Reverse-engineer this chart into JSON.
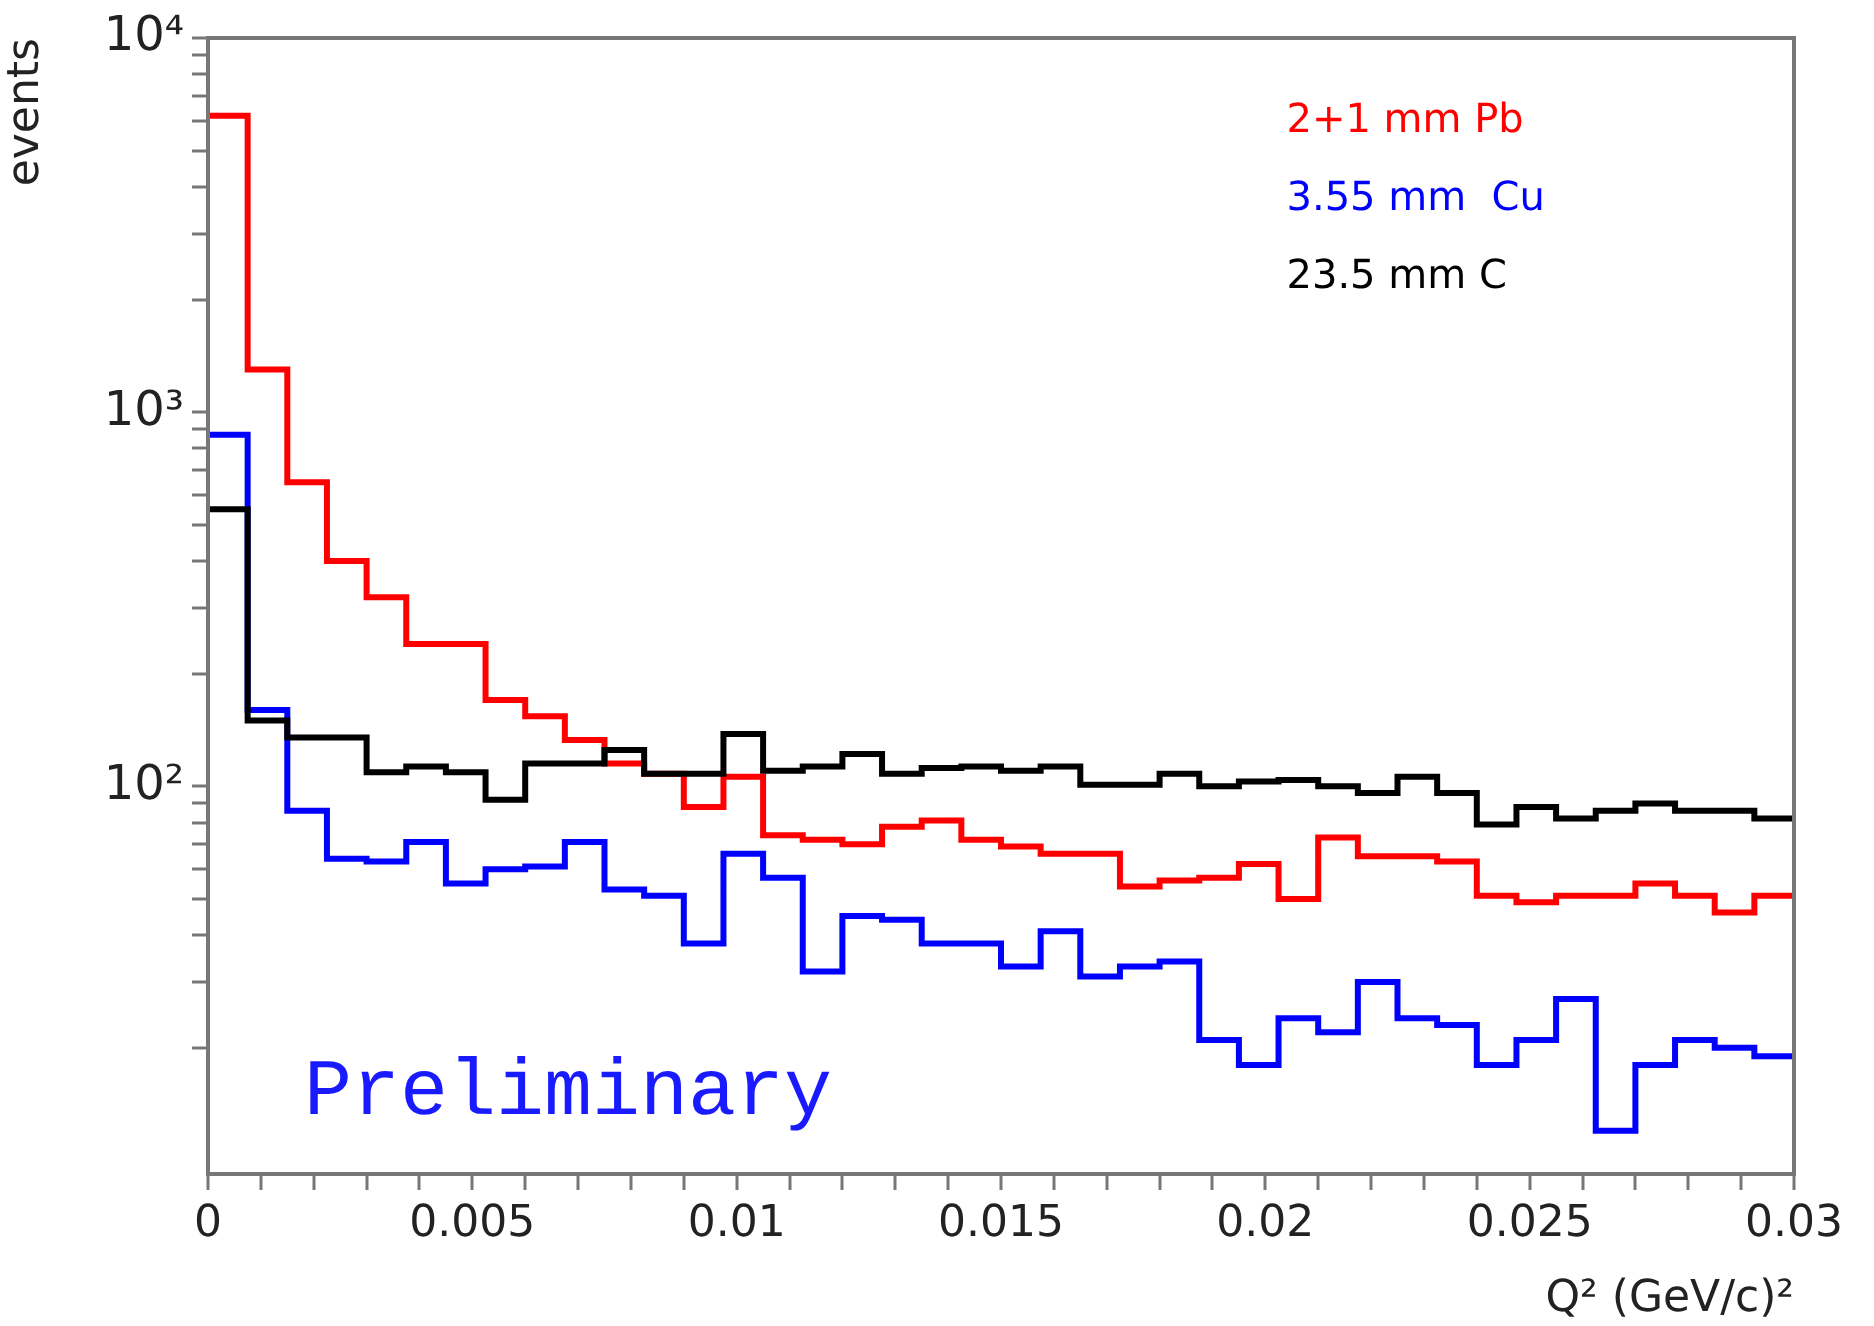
{
  "chart_data": {
    "type": "step",
    "xlabel": "Q² (GeV/c)²",
    "ylabel": "events",
    "log": "y",
    "grid": false,
    "legend": "top right",
    "x": [
      0,
      0.00075,
      0.0015,
      0.00225,
      0.003,
      0.00375,
      0.0045,
      0.00525,
      0.006,
      0.00675,
      0.0075,
      0.00825,
      0.009,
      0.00975,
      0.0105,
      0.01125,
      0.012,
      0.01275,
      0.0135,
      0.01425,
      0.015,
      0.01575,
      0.0165,
      0.01725,
      0.018,
      0.01875,
      0.0195,
      0.02025,
      0.021,
      0.02175,
      0.0225,
      0.02325,
      0.024,
      0.02475,
      0.0255,
      0.02625,
      0.027,
      0.02775,
      0.0285,
      0.02925,
      0.03
    ],
    "series": [
      {
        "name": "2+1 mm Pb",
        "color": "#ff0000",
        "values": [
          6200,
          1300,
          650,
          400,
          320,
          240,
          240,
          170,
          154,
          133,
          115,
          108,
          88,
          106,
          74,
          72,
          70,
          78,
          81,
          72,
          69,
          66,
          66,
          54,
          56,
          57,
          62,
          50,
          73,
          65,
          65,
          63,
          51,
          49,
          51,
          51,
          55,
          51,
          46,
          51,
          51
        ]
      },
      {
        "name": "3.55 mm  Cu",
        "color": "#0000ff",
        "values": [
          870,
          160,
          86,
          64,
          63,
          71,
          55,
          60,
          61,
          71,
          53,
          51,
          38,
          66,
          57,
          32,
          45,
          44,
          38,
          38,
          33,
          41,
          31,
          33,
          34,
          21,
          18,
          24,
          22,
          30,
          24,
          23,
          18,
          21,
          27,
          12,
          18,
          21,
          20,
          19,
          19
        ]
      },
      {
        "name": "23.5 mm C",
        "color": "#000000",
        "values": [
          550,
          150,
          135,
          135,
          109,
          113,
          109,
          92,
          115,
          115,
          125,
          108,
          108,
          138,
          110,
          113,
          122,
          108,
          112,
          113,
          110,
          113,
          101,
          101,
          108,
          100,
          103,
          104,
          100,
          96,
          106,
          96,
          79,
          88,
          82,
          86,
          90,
          86,
          86,
          82,
          82
        ]
      }
    ],
    "xlim": [
      0,
      0.03
    ],
    "xticks": [
      0,
      {
        "value": 0.001,
        "label": null
      },
      {
        "value": 0.002,
        "label": null
      },
      {
        "value": 0.003,
        "label": null
      },
      {
        "value": 0.004,
        "label": null
      },
      0.005,
      {
        "value": 0.006,
        "label": null
      },
      {
        "value": 0.007,
        "label": null
      },
      {
        "value": 0.008,
        "label": null
      },
      {
        "value": 0.009,
        "label": null
      },
      0.01,
      {
        "value": 0.011,
        "label": null
      },
      {
        "value": 0.012,
        "label": null
      },
      {
        "value": 0.013,
        "label": null
      },
      {
        "value": 0.014,
        "label": null
      },
      0.015,
      {
        "value": 0.016,
        "label": null
      },
      {
        "value": 0.017,
        "label": null
      },
      {
        "value": 0.018,
        "label": null
      },
      {
        "value": 0.019,
        "label": null
      },
      0.02,
      {
        "value": 0.021,
        "label": null
      },
      {
        "value": 0.022,
        "label": null
      },
      {
        "value": 0.023,
        "label": null
      },
      {
        "value": 0.024,
        "label": null
      },
      0.025,
      {
        "value": 0.026,
        "label": null
      },
      {
        "value": 0.027,
        "label": null
      },
      {
        "value": 0.028,
        "label": null
      },
      {
        "value": 0.029,
        "label": null
      },
      0.03
    ],
    "ylim": [
      9.2,
      10000
    ],
    "yticks": [
      {
        "value": 20,
        "label": null
      },
      {
        "value": 30,
        "label": null
      },
      {
        "value": 40,
        "label": null
      },
      {
        "value": 50,
        "label": null
      },
      {
        "value": 60,
        "label": null
      },
      {
        "value": 70,
        "label": null
      },
      {
        "value": 80,
        "label": null
      },
      {
        "value": 90,
        "label": null
      },
      {
        "value": 100,
        "label": "10²"
      },
      {
        "value": 200,
        "label": null
      },
      {
        "value": 300,
        "label": null
      },
      {
        "value": 400,
        "label": null
      },
      {
        "value": 500,
        "label": null
      },
      {
        "value": 600,
        "label": null
      },
      {
        "value": 700,
        "label": null
      },
      {
        "value": 800,
        "label": null
      },
      {
        "value": 900,
        "label": null
      },
      {
        "value": 1000,
        "label": "10³"
      },
      {
        "value": 2000,
        "label": null
      },
      {
        "value": 3000,
        "label": null
      },
      {
        "value": 4000,
        "label": null
      },
      {
        "value": 5000,
        "label": null
      },
      {
        "value": 6000,
        "label": null
      },
      {
        "value": 7000,
        "label": null
      },
      {
        "value": 8000,
        "label": null
      },
      {
        "value": 9000,
        "label": null
      },
      {
        "value": 10000,
        "label": "10⁴"
      }
    ],
    "annotations": [
      "Preliminary"
    ]
  }
}
